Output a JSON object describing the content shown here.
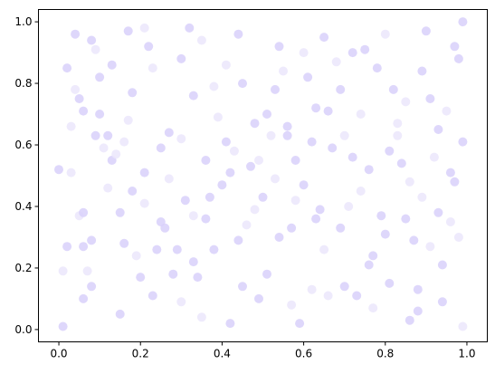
{
  "chart_data": {
    "type": "scatter",
    "title": "",
    "xlabel": "",
    "ylabel": "",
    "xlim": [
      -0.05,
      1.05
    ],
    "ylim": [
      -0.04,
      1.04
    ],
    "xticks": [
      0.0,
      0.2,
      0.4,
      0.6,
      0.8,
      1.0
    ],
    "yticks": [
      0.0,
      0.2,
      0.4,
      0.6,
      0.8,
      1.0
    ],
    "xtick_labels": [
      "0.0",
      "0.2",
      "0.4",
      "0.6",
      "0.8",
      "1.0"
    ],
    "ytick_labels": [
      "0.0",
      "0.2",
      "0.4",
      "0.6",
      "0.8",
      "1.0"
    ],
    "grid": false,
    "colors": {
      "marker": "#d8d0fa",
      "marker_light": "#ebe6fc",
      "axes": "#000000"
    },
    "series": [
      {
        "points": [
          [
            0.0,
            0.52
          ],
          [
            0.01,
            0.19
          ],
          [
            0.01,
            0.01
          ],
          [
            0.02,
            0.27
          ],
          [
            0.03,
            0.51
          ],
          [
            0.02,
            0.85
          ],
          [
            0.04,
            0.96
          ],
          [
            0.04,
            0.78
          ],
          [
            0.05,
            0.75
          ],
          [
            0.06,
            0.71
          ],
          [
            0.05,
            0.37
          ],
          [
            0.06,
            0.38
          ],
          [
            0.06,
            0.1
          ],
          [
            0.07,
            0.19
          ],
          [
            0.08,
            0.29
          ],
          [
            0.08,
            0.94
          ],
          [
            0.09,
            0.91
          ],
          [
            0.1,
            0.82
          ],
          [
            0.1,
            0.7
          ],
          [
            0.11,
            0.59
          ],
          [
            0.12,
            0.63
          ],
          [
            0.13,
            0.55
          ],
          [
            0.14,
            0.57
          ],
          [
            0.15,
            0.38
          ],
          [
            0.16,
            0.28
          ],
          [
            0.16,
            0.61
          ],
          [
            0.17,
            0.97
          ],
          [
            0.18,
            0.45
          ],
          [
            0.19,
            0.24
          ],
          [
            0.2,
            0.17
          ],
          [
            0.21,
            0.51
          ],
          [
            0.21,
            0.98
          ],
          [
            0.22,
            0.92
          ],
          [
            0.23,
            0.11
          ],
          [
            0.23,
            0.85
          ],
          [
            0.25,
            0.35
          ],
          [
            0.26,
            0.33
          ],
          [
            0.27,
            0.49
          ],
          [
            0.28,
            0.18
          ],
          [
            0.29,
            0.26
          ],
          [
            0.3,
            0.62
          ],
          [
            0.3,
            0.88
          ],
          [
            0.32,
            0.98
          ],
          [
            0.33,
            0.37
          ],
          [
            0.33,
            0.76
          ],
          [
            0.34,
            0.17
          ],
          [
            0.35,
            0.04
          ],
          [
            0.36,
            0.36
          ],
          [
            0.37,
            0.43
          ],
          [
            0.38,
            0.79
          ],
          [
            0.38,
            0.26
          ],
          [
            0.4,
            0.47
          ],
          [
            0.41,
            0.86
          ],
          [
            0.41,
            0.61
          ],
          [
            0.42,
            0.02
          ],
          [
            0.43,
            0.58
          ],
          [
            0.44,
            0.29
          ],
          [
            0.45,
            0.14
          ],
          [
            0.46,
            0.34
          ],
          [
            0.47,
            0.53
          ],
          [
            0.48,
            0.67
          ],
          [
            0.49,
            0.55
          ],
          [
            0.5,
            0.43
          ],
          [
            0.51,
            0.7
          ],
          [
            0.52,
            0.63
          ],
          [
            0.53,
            0.78
          ],
          [
            0.54,
            0.92
          ],
          [
            0.55,
            0.84
          ],
          [
            0.56,
            0.63
          ],
          [
            0.57,
            0.33
          ],
          [
            0.58,
            0.42
          ],
          [
            0.58,
            0.55
          ],
          [
            0.59,
            0.02
          ],
          [
            0.6,
            0.9
          ],
          [
            0.61,
            0.82
          ],
          [
            0.62,
            0.61
          ],
          [
            0.62,
            0.13
          ],
          [
            0.63,
            0.36
          ],
          [
            0.64,
            0.39
          ],
          [
            0.65,
            0.26
          ],
          [
            0.66,
            0.71
          ],
          [
            0.67,
            0.59
          ],
          [
            0.68,
            0.87
          ],
          [
            0.69,
            0.78
          ],
          [
            0.7,
            0.14
          ],
          [
            0.71,
            0.4
          ],
          [
            0.72,
            0.56
          ],
          [
            0.73,
            0.11
          ],
          [
            0.74,
            0.7
          ],
          [
            0.75,
            0.91
          ],
          [
            0.76,
            0.52
          ],
          [
            0.77,
            0.07
          ],
          [
            0.78,
            0.85
          ],
          [
            0.79,
            0.37
          ],
          [
            0.8,
            0.96
          ],
          [
            0.81,
            0.15
          ],
          [
            0.82,
            0.78
          ],
          [
            0.83,
            0.63
          ],
          [
            0.84,
            0.54
          ],
          [
            0.85,
            0.36
          ],
          [
            0.86,
            0.48
          ],
          [
            0.87,
            0.29
          ],
          [
            0.88,
            0.06
          ],
          [
            0.89,
            0.43
          ],
          [
            0.9,
            0.97
          ],
          [
            0.91,
            0.75
          ],
          [
            0.92,
            0.56
          ],
          [
            0.93,
            0.38
          ],
          [
            0.94,
            0.21
          ],
          [
            0.95,
            0.71
          ],
          [
            0.96,
            0.51
          ],
          [
            0.97,
            0.92
          ],
          [
            0.98,
            0.3
          ],
          [
            0.99,
            0.61
          ],
          [
            0.99,
            1.0
          ],
          [
            0.99,
            0.01
          ],
          [
            0.97,
            0.48
          ],
          [
            0.94,
            0.09
          ],
          [
            0.91,
            0.27
          ],
          [
            0.88,
            0.13
          ],
          [
            0.86,
            0.03
          ],
          [
            0.83,
            0.67
          ],
          [
            0.8,
            0.31
          ],
          [
            0.77,
            0.24
          ],
          [
            0.74,
            0.45
          ],
          [
            0.72,
            0.9
          ],
          [
            0.69,
            0.33
          ],
          [
            0.66,
            0.11
          ],
          [
            0.63,
            0.72
          ],
          [
            0.6,
            0.47
          ],
          [
            0.57,
            0.08
          ],
          [
            0.54,
            0.3
          ],
          [
            0.51,
            0.18
          ],
          [
            0.48,
            0.39
          ],
          [
            0.45,
            0.8
          ],
          [
            0.42,
            0.51
          ],
          [
            0.39,
            0.69
          ],
          [
            0.36,
            0.55
          ],
          [
            0.33,
            0.22
          ],
          [
            0.3,
            0.09
          ],
          [
            0.27,
            0.64
          ],
          [
            0.24,
            0.26
          ],
          [
            0.21,
            0.41
          ],
          [
            0.18,
            0.77
          ],
          [
            0.15,
            0.05
          ],
          [
            0.12,
            0.46
          ],
          [
            0.09,
            0.63
          ],
          [
            0.06,
            0.27
          ],
          [
            0.03,
            0.66
          ],
          [
            0.08,
            0.14
          ],
          [
            0.13,
            0.86
          ],
          [
            0.17,
            0.68
          ],
          [
            0.25,
            0.59
          ],
          [
            0.31,
            0.42
          ],
          [
            0.35,
            0.94
          ],
          [
            0.44,
            0.96
          ],
          [
            0.49,
            0.1
          ],
          [
            0.53,
            0.49
          ],
          [
            0.56,
            0.66
          ],
          [
            0.65,
            0.95
          ],
          [
            0.7,
            0.63
          ],
          [
            0.76,
            0.21
          ],
          [
            0.81,
            0.58
          ],
          [
            0.85,
            0.74
          ],
          [
            0.89,
            0.84
          ],
          [
            0.93,
            0.65
          ],
          [
            0.96,
            0.35
          ],
          [
            0.98,
            0.88
          ]
        ]
      }
    ]
  }
}
